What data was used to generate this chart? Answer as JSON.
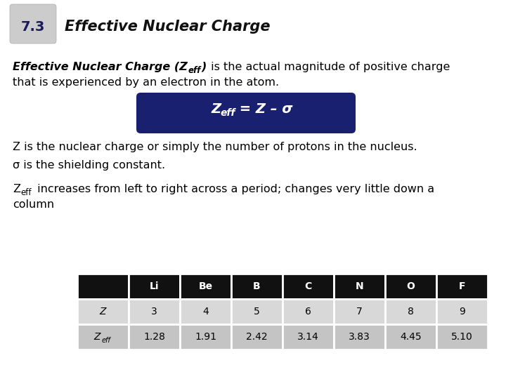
{
  "title_num": "7.3",
  "title_text": "Effective Nuclear Charge",
  "bg_color": "#ffffff",
  "title_bg_top": "#e0e0e0",
  "title_bg_bot": "#b0b0b0",
  "title_num_color": "#1a1a5e",
  "title_text_color": "#111111",
  "formula_bg": "#1a2070",
  "formula_color": "#ffffff",
  "line2": "Z is the nuclear charge or simply the number of protons in the nucleus.",
  "line3": "σ is the shielding constant.",
  "table_headers": [
    "",
    "Li",
    "Be",
    "B",
    "C",
    "N",
    "O",
    "F"
  ],
  "table_row1_label": "Z",
  "table_row1_vals": [
    "3",
    "4",
    "5",
    "6",
    "7",
    "8",
    "9"
  ],
  "table_row2_label": "Z",
  "table_row2_sub": "eff",
  "table_row2_vals": [
    "1.28",
    "1.91",
    "2.42",
    "3.14",
    "3.83",
    "4.45",
    "5.10"
  ],
  "table_header_bg": "#111111",
  "table_header_fg": "#ffffff",
  "table_row1_bg": "#d8d8d8",
  "table_row2_bg": "#c4c4c4",
  "font_size_body": 11.5,
  "font_size_title_num": 14,
  "font_size_title": 15,
  "font_size_formula": 13,
  "font_size_table": 10
}
